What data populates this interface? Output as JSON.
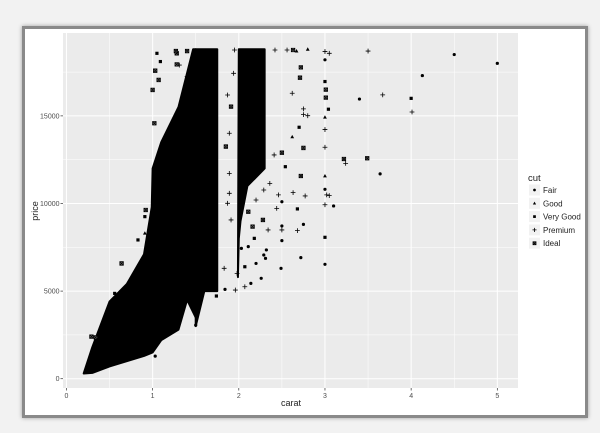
{
  "chart_data": {
    "type": "scatter",
    "xlabel": "carat",
    "ylabel": "price",
    "xlim": [
      -0.04,
      5.24
    ],
    "ylim": [
      -530,
      19730
    ],
    "x_ticks": [
      0,
      1,
      2,
      3,
      4,
      5
    ],
    "y_ticks": [
      0,
      5000,
      10000,
      15000
    ],
    "x_tick_labels": [
      "0",
      "1",
      "2",
      "3",
      "4",
      "5"
    ],
    "y_tick_labels": [
      "0",
      "5000",
      "10000",
      "15000"
    ],
    "grid": true,
    "panel_background": "#ebebeb",
    "grid_color": "#ffffff",
    "point_color": "#000000",
    "legend": {
      "title": "cut",
      "placement": "right",
      "entries": [
        {
          "label": "Fair",
          "shape": "circle"
        },
        {
          "label": "Good",
          "shape": "triangle"
        },
        {
          "label": "Very Good",
          "shape": "square"
        },
        {
          "label": "Premium",
          "shape": "plus"
        },
        {
          "label": "Ideal",
          "shape": "boxed-cross"
        }
      ]
    },
    "dense_regions": [
      {
        "points": [
          [
            0.2,
            300
          ],
          [
            0.3,
            1800
          ],
          [
            0.5,
            4400
          ],
          [
            0.7,
            5400
          ],
          [
            0.9,
            7100
          ],
          [
            0.99,
            9800
          ],
          [
            1.0,
            12000
          ],
          [
            1.1,
            13500
          ],
          [
            1.3,
            15500
          ],
          [
            1.47,
            18800
          ],
          [
            1.5,
            18800
          ],
          [
            1.5,
            3500
          ],
          [
            1.4,
            4500
          ],
          [
            1.3,
            2800
          ],
          [
            1.1,
            2200
          ],
          [
            1.0,
            1500
          ],
          [
            0.9,
            1300
          ],
          [
            0.7,
            1000
          ],
          [
            0.5,
            700
          ],
          [
            0.3,
            330
          ]
        ]
      },
      {
        "points": [
          [
            1.5,
            18800
          ],
          [
            1.75,
            18800
          ],
          [
            1.75,
            5000
          ],
          [
            1.6,
            5000
          ],
          [
            1.5,
            3000
          ]
        ]
      },
      {
        "points": [
          [
            2.0,
            18800
          ],
          [
            2.3,
            18800
          ],
          [
            2.3,
            12000
          ],
          [
            2.1,
            11000
          ],
          [
            2.02,
            9000
          ],
          [
            2.0,
            8000
          ],
          [
            1.99,
            5800
          ]
        ]
      }
    ],
    "points": [
      [
        4.5,
        18500,
        "Fair"
      ],
      [
        5.0,
        18000,
        "Fair"
      ],
      [
        4.13,
        17300,
        "Fair"
      ],
      [
        3.4,
        15960,
        "Fair"
      ],
      [
        3.67,
        16200,
        "Premium"
      ],
      [
        4.0,
        16000,
        "Very Good"
      ],
      [
        4.01,
        15220,
        "Premium"
      ],
      [
        3.5,
        18700,
        "Premium"
      ],
      [
        2.8,
        18800,
        "Good"
      ],
      [
        3.0,
        18670,
        "Premium"
      ],
      [
        3.05,
        18570,
        "Premium"
      ],
      [
        3.0,
        18200,
        "Fair"
      ],
      [
        3.0,
        16960,
        "Very Good"
      ],
      [
        3.01,
        16500,
        "Ideal"
      ],
      [
        3.01,
        16040,
        "Ideal"
      ],
      [
        3.04,
        15380,
        "Very Good"
      ],
      [
        3.0,
        14920,
        "Good"
      ],
      [
        3.0,
        14220,
        "Premium"
      ],
      [
        3.0,
        13210,
        "Premium"
      ],
      [
        3.22,
        12540,
        "Ideal"
      ],
      [
        3.24,
        12290,
        "Premium"
      ],
      [
        3.49,
        12580,
        "Ideal"
      ],
      [
        3.64,
        11690,
        "Fair"
      ],
      [
        3.0,
        11570,
        "Good"
      ],
      [
        3.0,
        10810,
        "Fair"
      ],
      [
        3.02,
        10490,
        "Premium"
      ],
      [
        3.05,
        10450,
        "Premium"
      ],
      [
        3.0,
        9930,
        "Premium"
      ],
      [
        3.1,
        9860,
        "Fair"
      ],
      [
        3.0,
        8070,
        "Very Good"
      ],
      [
        3.0,
        6530,
        "Fair"
      ],
      [
        2.72,
        6910,
        "Fair"
      ],
      [
        2.75,
        8810,
        "Fair"
      ],
      [
        2.68,
        9690,
        "Very Good"
      ],
      [
        2.68,
        8450,
        "Premium"
      ],
      [
        2.77,
        10430,
        "Premium"
      ],
      [
        2.63,
        10620,
        "Premium"
      ],
      [
        2.5,
        10100,
        "Fair"
      ],
      [
        2.5,
        8720,
        "Fair"
      ],
      [
        2.5,
        8490,
        "Premium"
      ],
      [
        2.5,
        7880,
        "Fair"
      ],
      [
        2.49,
        6300,
        "Fair"
      ],
      [
        2.44,
        9720,
        "Premium"
      ],
      [
        2.46,
        10490,
        "Premium"
      ],
      [
        2.72,
        11570,
        "Ideal"
      ],
      [
        2.75,
        13170,
        "Ideal"
      ],
      [
        2.7,
        14350,
        "Very Good"
      ],
      [
        2.62,
        13800,
        "Good"
      ],
      [
        2.75,
        15070,
        "Premium"
      ],
      [
        2.8,
        15010,
        "Premium"
      ],
      [
        2.75,
        15400,
        "Premium"
      ],
      [
        2.72,
        17770,
        "Ideal"
      ],
      [
        2.71,
        17180,
        "Ideal"
      ],
      [
        2.62,
        16290,
        "Premium"
      ],
      [
        2.54,
        12100,
        "Very Good"
      ],
      [
        2.5,
        12900,
        "Ideal"
      ],
      [
        2.41,
        12770,
        "Premium"
      ],
      [
        2.36,
        11150,
        "Premium"
      ],
      [
        2.29,
        10770,
        "Premium"
      ],
      [
        2.34,
        8490,
        "Premium"
      ],
      [
        2.31,
        6870,
        "Fair"
      ],
      [
        2.26,
        5730,
        "Fair"
      ],
      [
        2.14,
        5440,
        "Fair"
      ],
      [
        2.07,
        5250,
        "Premium"
      ],
      [
        1.96,
        5060,
        "Premium"
      ],
      [
        1.84,
        5100,
        "Fair"
      ],
      [
        1.74,
        4720,
        "Very Good"
      ],
      [
        1.67,
        5250,
        "Premium"
      ],
      [
        1.83,
        6300,
        "Premium"
      ],
      [
        1.91,
        9060,
        "Premium"
      ],
      [
        1.89,
        10580,
        "Premium"
      ],
      [
        1.87,
        16190,
        "Premium"
      ],
      [
        1.94,
        17430,
        "Premium"
      ],
      [
        1.31,
        17900,
        "Premium"
      ],
      [
        1.4,
        17240,
        "Premium"
      ],
      [
        1.28,
        17940,
        "Ideal"
      ],
      [
        1.28,
        18570,
        "Ideal"
      ],
      [
        1.05,
        18570,
        "Very Good"
      ],
      [
        1.09,
        18100,
        "Very Good"
      ],
      [
        1.03,
        17580,
        "Ideal"
      ],
      [
        1.07,
        17050,
        "Ideal"
      ],
      [
        1.0,
        16480,
        "Ideal"
      ],
      [
        1.02,
        14580,
        "Ideal"
      ],
      [
        0.92,
        9630,
        "Ideal"
      ],
      [
        0.91,
        9250,
        "Very Good"
      ],
      [
        0.91,
        8300,
        "Good"
      ],
      [
        0.83,
        7920,
        "Very Good"
      ],
      [
        0.64,
        6580,
        "Ideal"
      ],
      [
        0.56,
        4870,
        "Very Good"
      ],
      [
        0.52,
        4400,
        "Very Good"
      ],
      [
        0.29,
        2400,
        "Ideal"
      ],
      [
        0.34,
        2360,
        "Ideal"
      ],
      [
        1.03,
        1290,
        "Fair"
      ],
      [
        1.27,
        18700,
        "Ideal"
      ],
      [
        1.4,
        18700,
        "Ideal"
      ],
      [
        1.95,
        18760,
        "Premium"
      ],
      [
        2.42,
        18760,
        "Premium"
      ],
      [
        2.56,
        18760,
        "Premium"
      ],
      [
        2.63,
        18760,
        "Ideal"
      ],
      [
        2.67,
        18700,
        "Good"
      ],
      [
        2.03,
        7440,
        "Fair"
      ],
      [
        2.11,
        7540,
        "Fair"
      ],
      [
        2.07,
        6390,
        "Very Good"
      ],
      [
        2.2,
        6580,
        "Fair"
      ],
      [
        2.32,
        7350,
        "Fair"
      ],
      [
        2.29,
        7060,
        "Fair"
      ],
      [
        1.98,
        6010,
        "Premium"
      ],
      [
        2.18,
        8010,
        "Very Good"
      ],
      [
        2.28,
        9060,
        "Ideal"
      ],
      [
        2.16,
        8680,
        "Ideal"
      ],
      [
        2.11,
        9530,
        "Ideal"
      ],
      [
        2.2,
        10200,
        "Premium"
      ],
      [
        1.58,
        5250,
        "Premium"
      ],
      [
        1.54,
        4490,
        "Premium"
      ],
      [
        1.5,
        3060,
        "Fair"
      ],
      [
        1.87,
        10010,
        "Premium"
      ],
      [
        1.89,
        11720,
        "Premium"
      ],
      [
        1.85,
        13250,
        "Ideal"
      ],
      [
        1.89,
        14010,
        "Premium"
      ],
      [
        1.91,
        15530,
        "Ideal"
      ]
    ]
  }
}
